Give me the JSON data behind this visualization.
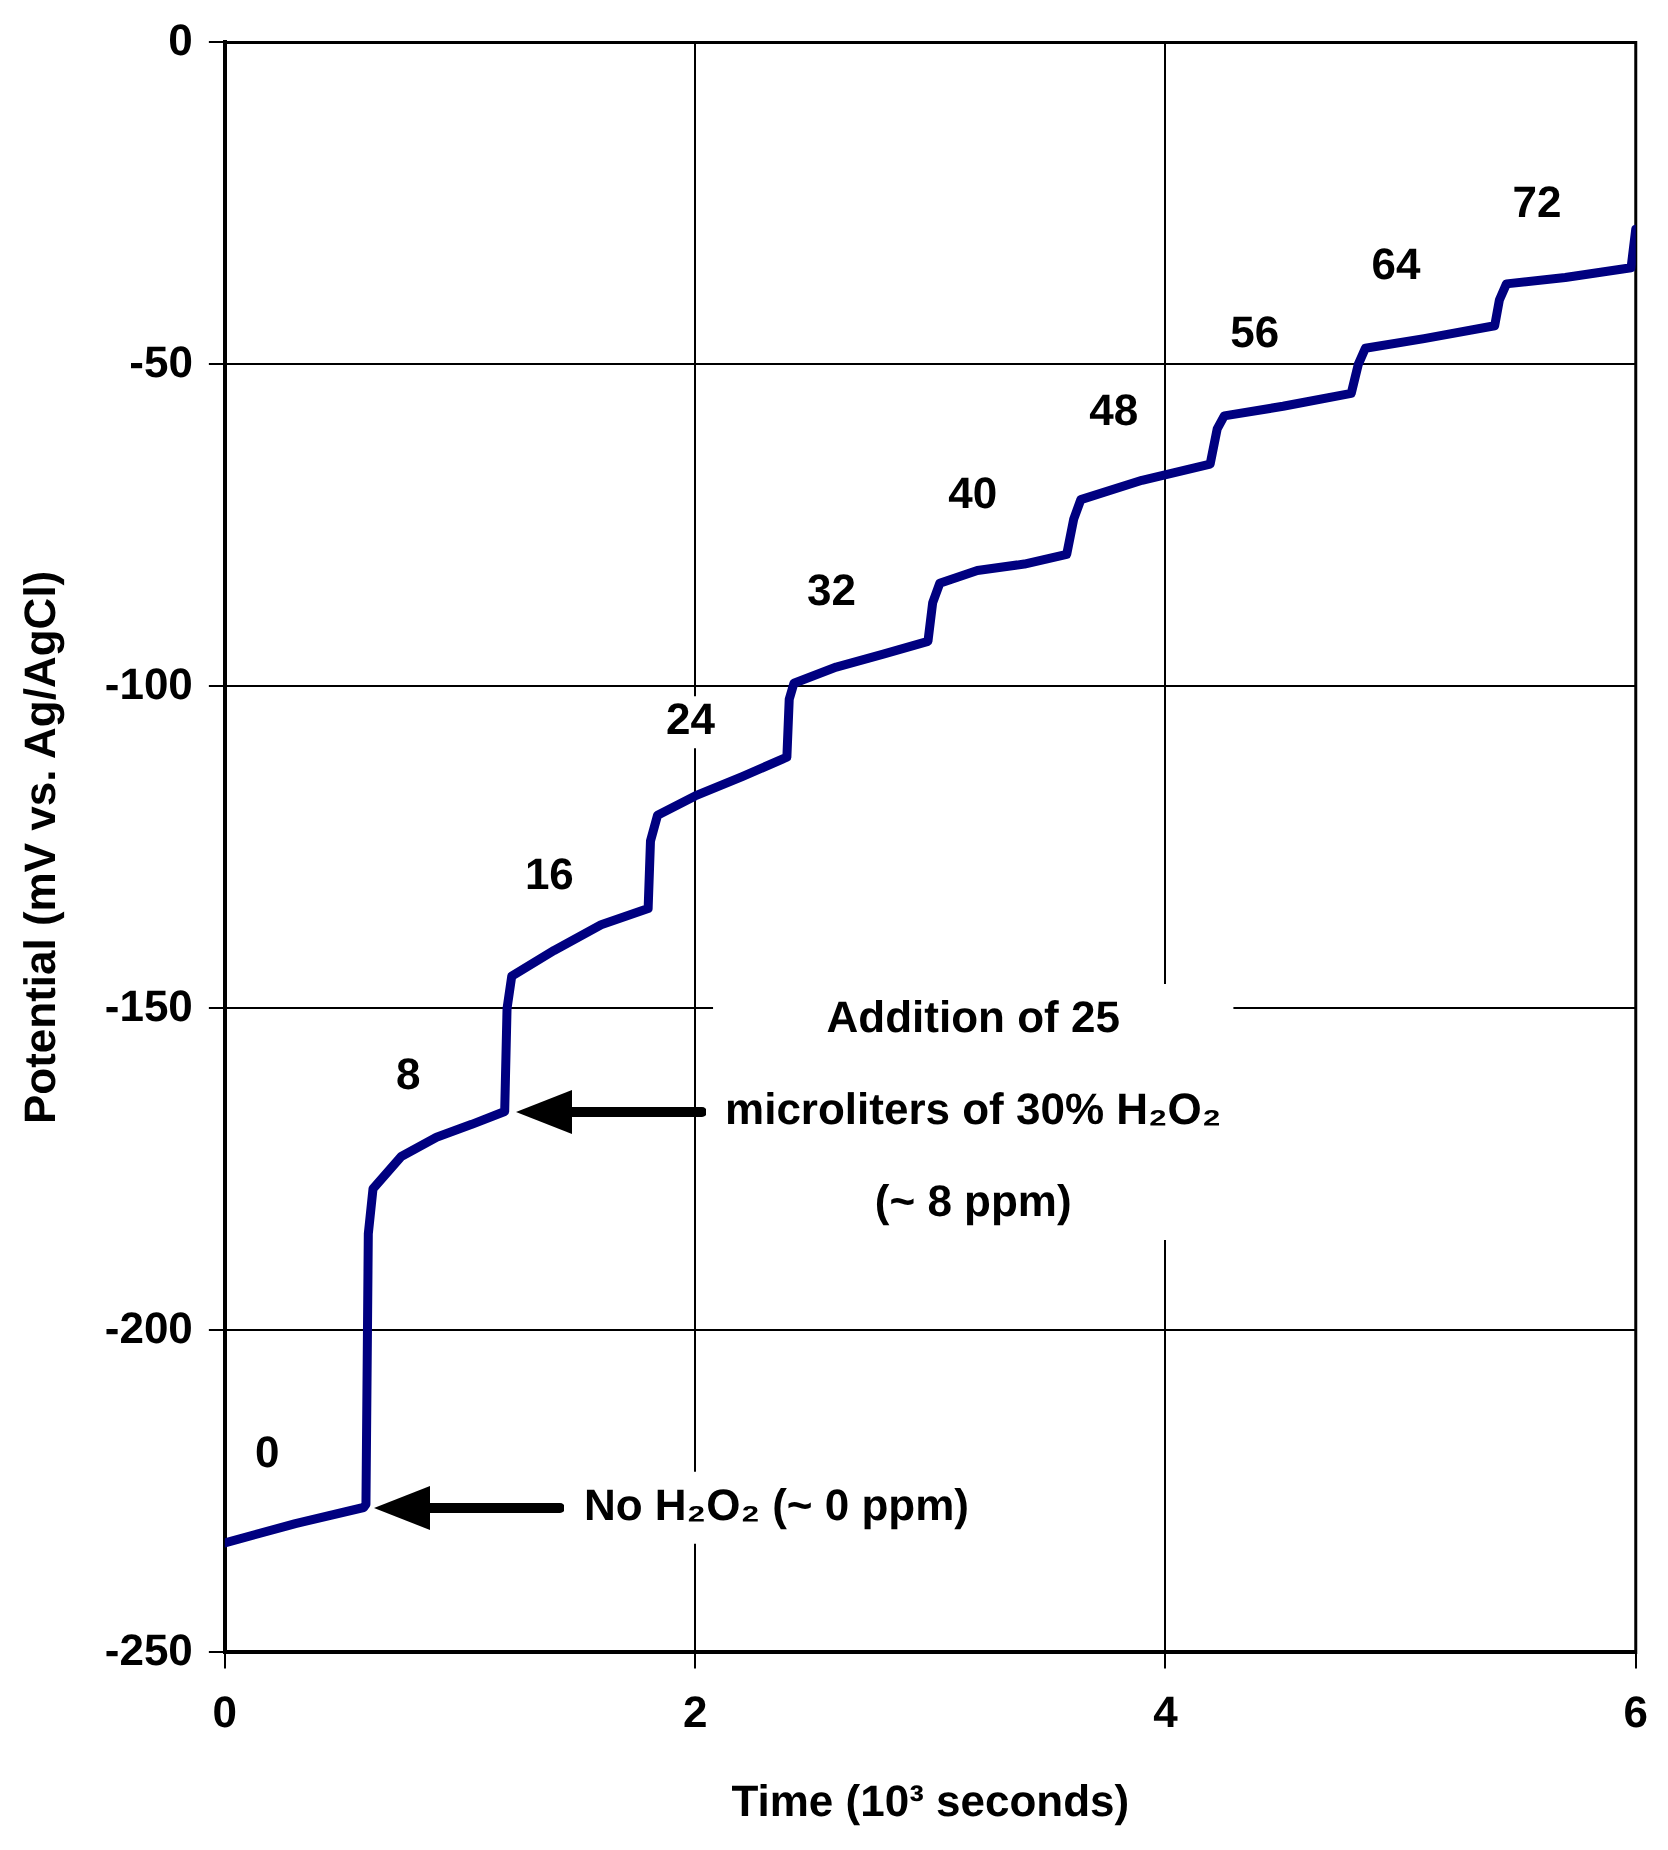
{
  "chart_data": {
    "type": "line",
    "xlabel": "Time (10³ seconds)",
    "ylabel": "Potential (mV vs. Ag/AgCl)",
    "xlim": [
      0,
      6
    ],
    "xticks": [
      0,
      2,
      4,
      6
    ],
    "ylim": [
      -250,
      0
    ],
    "yticks": [
      0,
      -50,
      -100,
      -150,
      -200,
      -250
    ],
    "grid": true,
    "legend": false,
    "marker": "none",
    "line_style": "solid",
    "series": [
      {
        "color": "#000080",
        "x": [
          0,
          0.3,
          0.59,
          0.6,
          0.61,
          0.63,
          0.75,
          0.9,
          1.05,
          1.19,
          1.2,
          1.22,
          1.4,
          1.6,
          1.8,
          1.81,
          1.84,
          2.0,
          2.2,
          2.39,
          2.4,
          2.42,
          2.6,
          2.8,
          2.99,
          3.01,
          3.04,
          3.2,
          3.4,
          3.58,
          3.61,
          3.64,
          3.9,
          4.19,
          4.22,
          4.25,
          4.5,
          4.79,
          4.82,
          4.85,
          5.1,
          5.4,
          5.42,
          5.45,
          5.7,
          5.98,
          6.0
        ],
        "values": [
          -233,
          -230,
          -227.5,
          -227,
          -185,
          -178,
          -173,
          -170,
          -168,
          -166,
          -150,
          -145,
          -141,
          -137,
          -134.5,
          -124,
          -120,
          -117,
          -114,
          -111,
          -102,
          -99.5,
          -97,
          -95,
          -93,
          -87,
          -84,
          -82,
          -81,
          -79.5,
          -74,
          -71,
          -68,
          -65.5,
          -60,
          -58,
          -56.5,
          -54.5,
          -50,
          -47.5,
          -46,
          -44,
          -40,
          -37.5,
          -36.5,
          -35,
          -29
        ]
      }
    ],
    "annotations": [
      "No H₂O₂ (~ 0 ppm)",
      "Addition of 25\nmicroliters of 30% H₂O₂\n(~ 8 ppm)",
      "0",
      "8",
      "16",
      "24",
      "32",
      "40",
      "48",
      "56",
      "64",
      "72"
    ]
  }
}
